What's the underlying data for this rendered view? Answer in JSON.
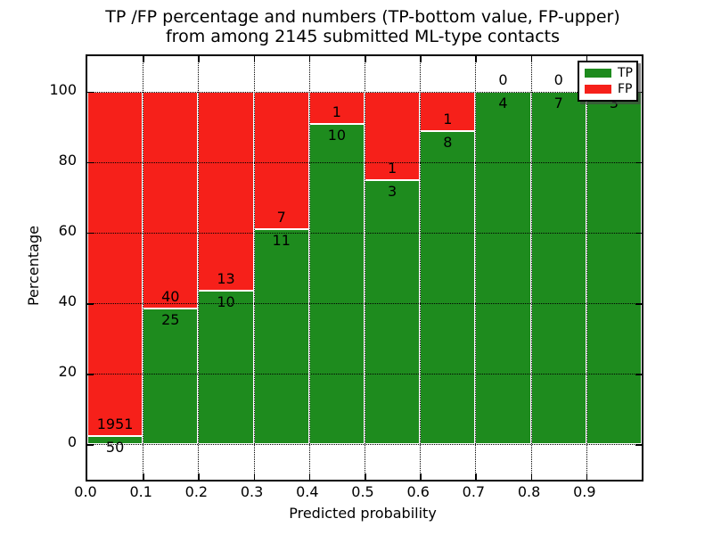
{
  "chart_data": {
    "type": "bar",
    "stacked": true,
    "normalized_percent": true,
    "title_lines": [
      "TP /FP percentage and numbers (TP-bottom value, FP-upper)",
      "from among 2145 submitted ML-type contacts"
    ],
    "xlabel": "Predicted probability",
    "ylabel": "Percentage",
    "categories": [
      "0.0",
      "0.1",
      "0.2",
      "0.3",
      "0.4",
      "0.5",
      "0.6",
      "0.7",
      "0.8",
      "0.9"
    ],
    "bin_width": 0.1,
    "series": [
      {
        "name": "TP",
        "color": "#1e8b1e",
        "values": [
          50,
          25,
          10,
          11,
          10,
          3,
          8,
          4,
          7,
          3
        ]
      },
      {
        "name": "FP",
        "color": "#f6201a",
        "values": [
          1951,
          40,
          13,
          7,
          1,
          1,
          1,
          0,
          0,
          0
        ]
      }
    ],
    "xticks": [
      0.0,
      0.1,
      0.2,
      0.3,
      0.4,
      0.5,
      0.6,
      0.7,
      0.8,
      0.9
    ],
    "yticks": [
      0,
      20,
      40,
      60,
      80,
      100
    ],
    "xlim": [
      0,
      1
    ],
    "ylim": [
      -10,
      110
    ],
    "grid": true,
    "legend": {
      "position": "upper right",
      "entries": [
        "TP",
        "FP"
      ]
    },
    "bar_edge_color": "#ffffff",
    "label_note": "FP count printed above each green/red boundary, TP count below it"
  }
}
